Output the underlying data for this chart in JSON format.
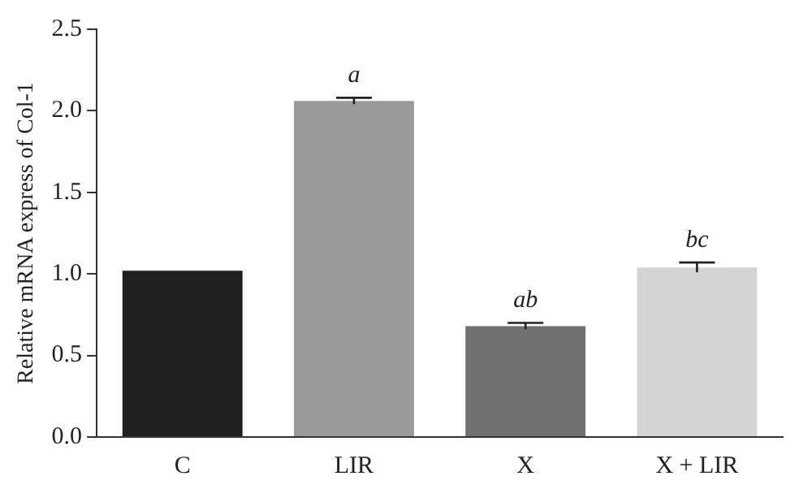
{
  "chart_data": {
    "type": "bar",
    "ylabel": "Relative mRNA express of Col-1",
    "categories": [
      "C",
      "LIR",
      "X",
      "X + LIR"
    ],
    "values": [
      1.02,
      2.06,
      0.68,
      1.04
    ],
    "colors": [
      "#1f1f1f",
      "#9a9a9a",
      "#717171",
      "#d4d4d4"
    ],
    "errors": [
      null,
      0.02,
      0.02,
      0.03
    ],
    "ylim": [
      0,
      2.5
    ],
    "yticks": [
      {
        "value": 0,
        "label": "0.0"
      },
      {
        "value": 0.5,
        "label": "0.5"
      },
      {
        "value": 1,
        "label": "1.0"
      },
      {
        "value": 1.5,
        "label": "1.5"
      },
      {
        "value": 2,
        "label": "2.0"
      },
      {
        "value": 2.5,
        "label": "2.5"
      }
    ],
    "grid": false,
    "legend": false,
    "annotations": [
      {
        "text": "a",
        "x": "LIR",
        "y": 2.08
      },
      {
        "text": "ab",
        "x": "X",
        "y": 0.7
      },
      {
        "text": "bc",
        "x": "X + LIR",
        "y": 1.07
      }
    ]
  }
}
